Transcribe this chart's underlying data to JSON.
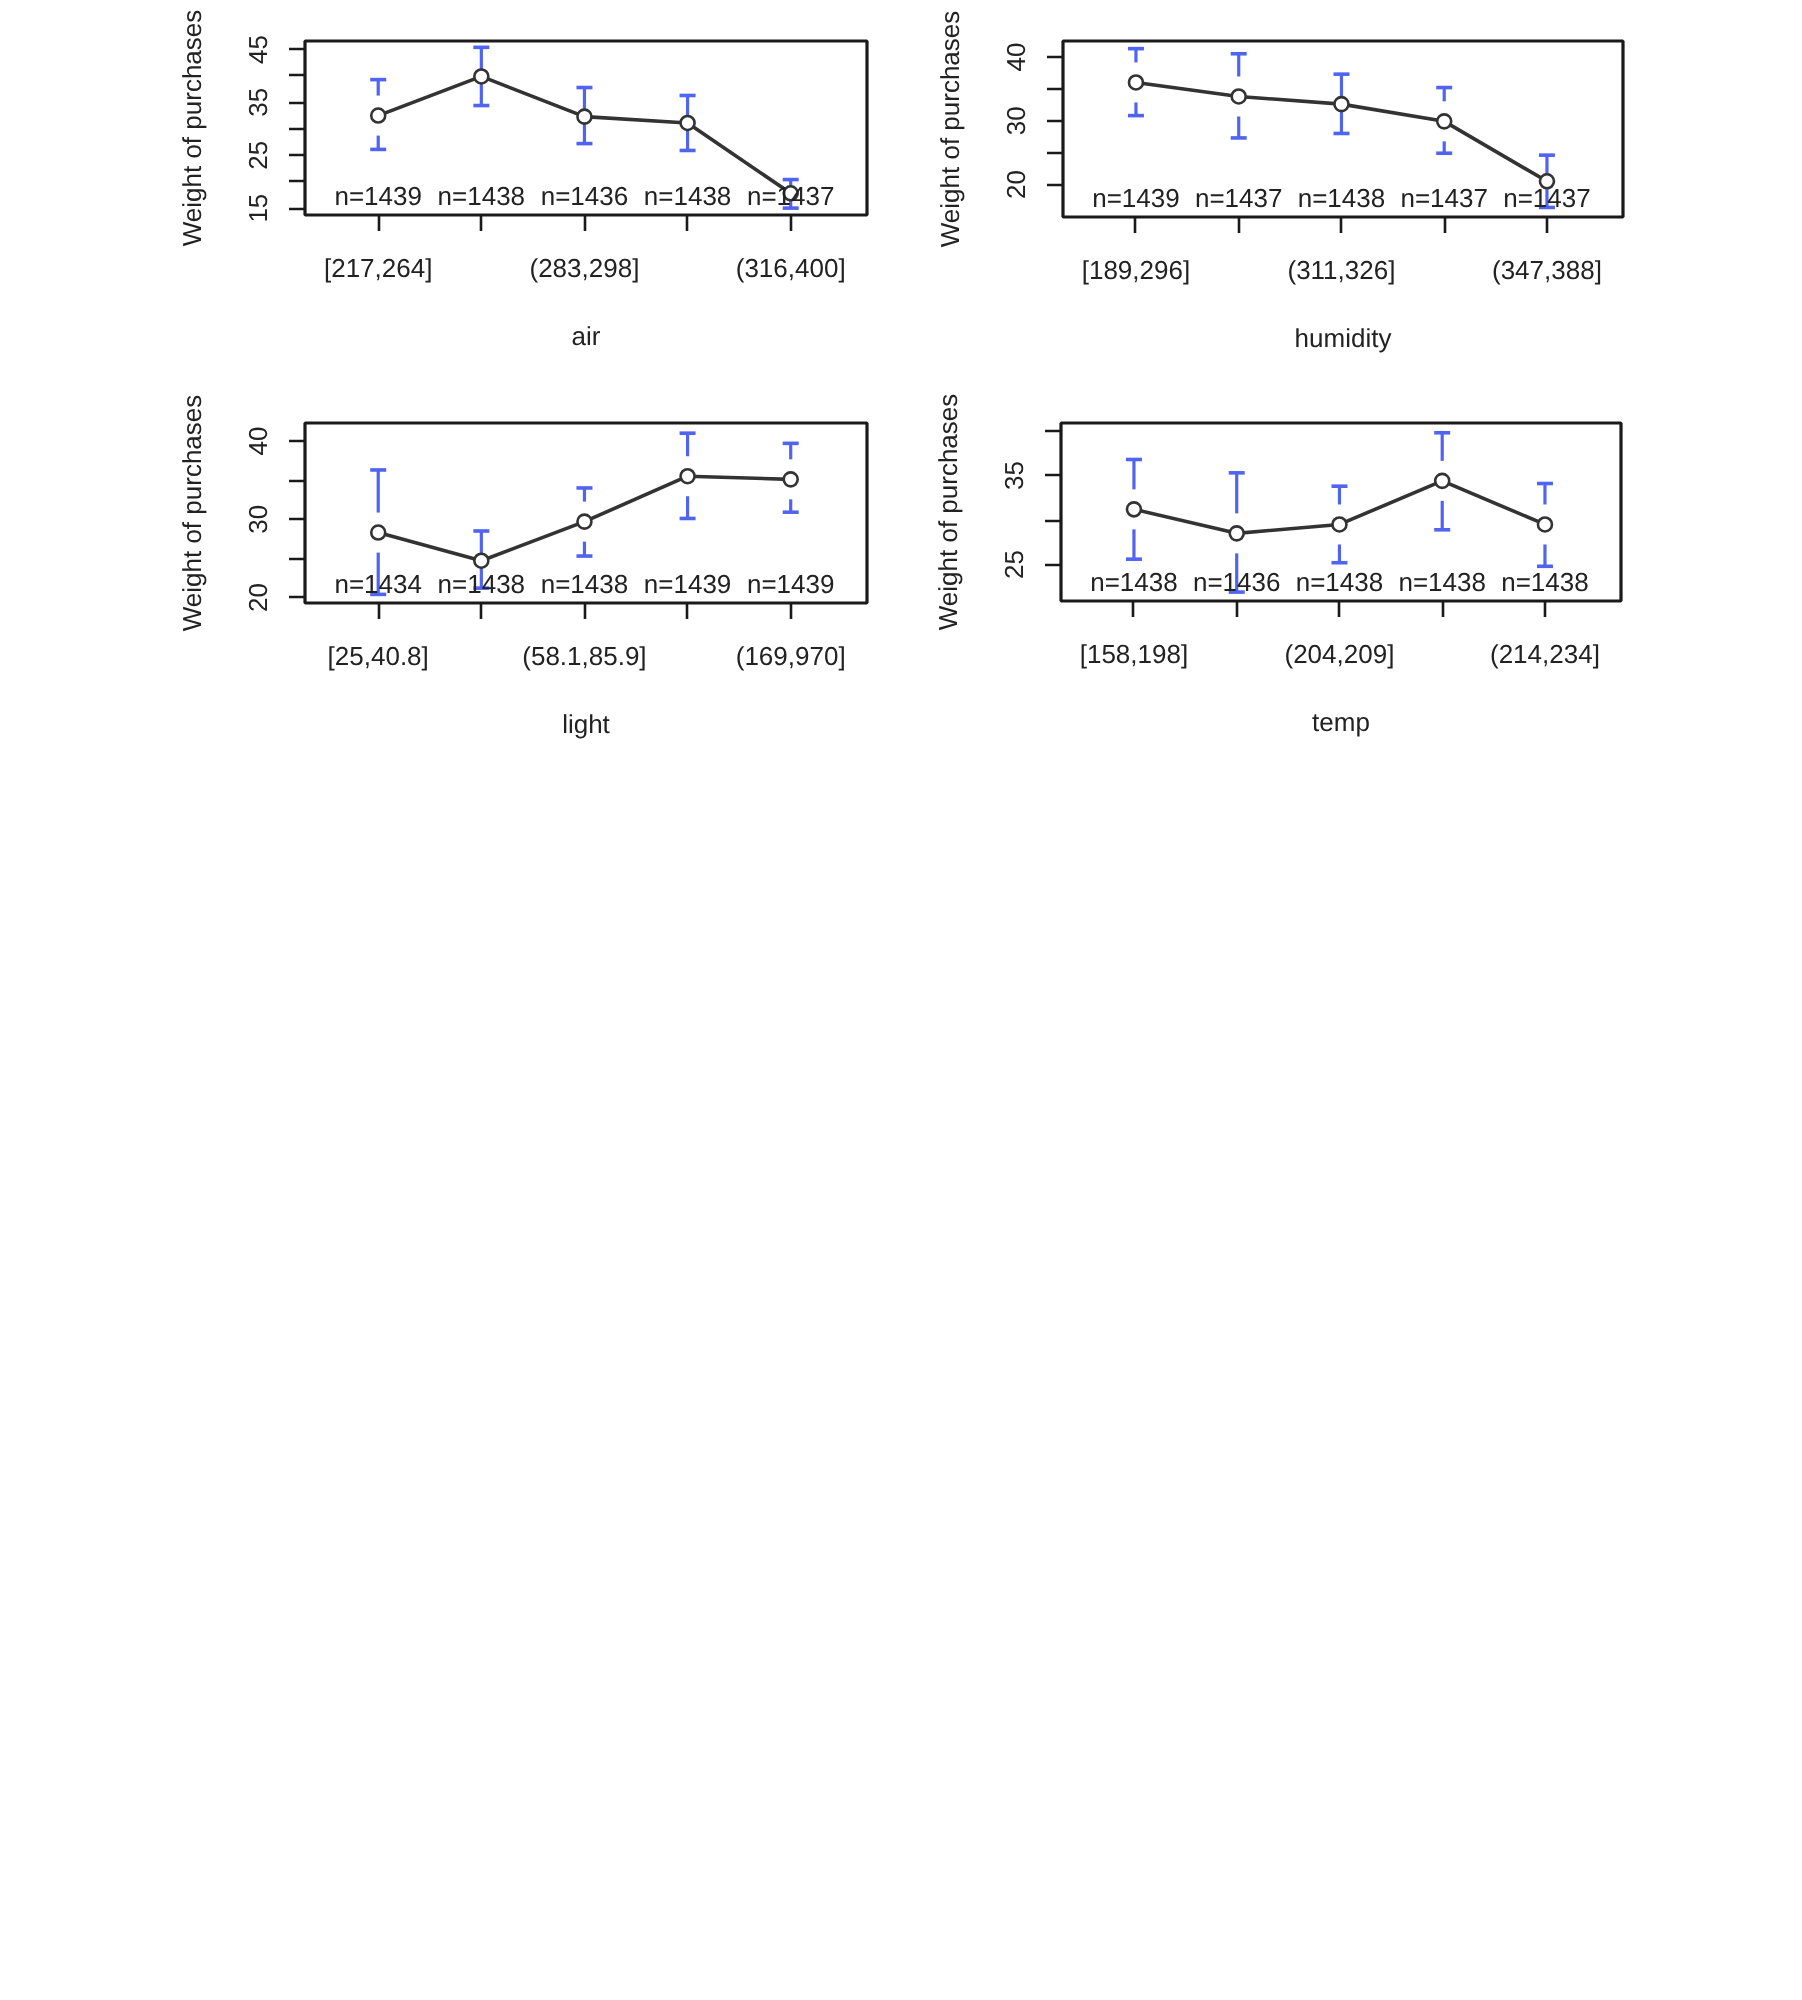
{
  "chart_data": [
    {
      "type": "line",
      "xlabel": "air",
      "ylabel": "Weight of purchases",
      "categories": [
        "[217,264]",
        null,
        "(283,298]",
        null,
        "(316,400]"
      ],
      "series": [
        {
          "color": "#333333",
          "values": [
            32.5,
            39.9,
            32.3,
            31.1,
            17.8
          ],
          "errors": [
            [
              26.1,
              39.3
            ],
            [
              34.4,
              45.4
            ],
            [
              27.2,
              37.8
            ],
            [
              25.9,
              36.3
            ],
            [
              15.0,
              20.4
            ]
          ]
        }
      ],
      "ylim": [
        13.7,
        46.6
      ],
      "yticks": [
        15,
        {
          "value": 20,
          "label": null
        },
        25,
        {
          "value": 30,
          "label": null
        },
        35,
        {
          "value": 40,
          "label": null
        },
        45
      ],
      "marker": "circle",
      "line_style": "solid",
      "annotations": [
        "n=1439",
        "n=1438",
        "n=1436",
        "n=1438",
        "n=1437"
      ]
    },
    {
      "type": "line",
      "xlabel": "humidity",
      "ylabel": "Weight of purchases",
      "categories": [
        "[189,296]",
        null,
        "(311,326]",
        null,
        "(347,388]"
      ],
      "series": [
        {
          "color": "#333333",
          "values": [
            36.0,
            33.8,
            32.6,
            29.9,
            20.5
          ],
          "errors": [
            [
              30.8,
              41.3
            ],
            [
              27.3,
              40.5
            ],
            [
              28.0,
              37.3
            ],
            [
              24.9,
              35.2
            ],
            [
              16.4,
              24.6
            ]
          ]
        }
      ],
      "ylim": [
        14.9,
        42.5
      ],
      "yticks": [
        20,
        {
          "value": 25,
          "label": null
        },
        30,
        {
          "value": 35,
          "label": null
        },
        40
      ],
      "marker": "circle",
      "line_style": "solid",
      "annotations": [
        "n=1439",
        "n=1437",
        "n=1438",
        "n=1437",
        "n=1437"
      ]
    },
    {
      "type": "line",
      "xlabel": "light",
      "ylabel": "Weight of purchases",
      "categories": [
        "[25,40.8]",
        null,
        "(58.1,85.9]",
        null,
        "(169,970]"
      ],
      "series": [
        {
          "color": "#333333",
          "values": [
            28.3,
            24.7,
            29.7,
            35.5,
            35.1
          ],
          "errors": [
            [
              20.4,
              36.3
            ],
            [
              21.2,
              28.5
            ],
            [
              25.3,
              34.0
            ],
            [
              30.1,
              41.0
            ],
            [
              30.9,
              39.7
            ]
          ]
        }
      ],
      "ylim": [
        19.3,
        42.3
      ],
      "yticks": [
        20,
        {
          "value": 25,
          "label": null
        },
        30,
        {
          "value": 35,
          "label": null
        },
        40
      ],
      "marker": "circle",
      "line_style": "solid",
      "annotations": [
        "n=1434",
        "n=1438",
        "n=1438",
        "n=1439",
        "n=1439"
      ]
    },
    {
      "type": "line",
      "xlabel": "temp",
      "ylabel": "Weight of purchases",
      "categories": [
        "[158,198]",
        null,
        "(204,209]",
        null,
        "(214,234]"
      ],
      "series": [
        {
          "color": "#333333",
          "values": [
            31.2,
            28.5,
            29.5,
            34.4,
            29.5
          ],
          "errors": [
            [
              25.6,
              36.8
            ],
            [
              21.9,
              35.3
            ],
            [
              25.2,
              33.8
            ],
            [
              28.9,
              39.8
            ],
            [
              24.8,
              34.1
            ]
          ]
        }
      ],
      "ylim": [
        20.9,
        40.9
      ],
      "yticks": [
        25,
        {
          "value": 30,
          "label": null
        },
        35,
        {
          "value": 40,
          "label": null
        }
      ],
      "marker": "circle",
      "line_style": "solid",
      "annotations": [
        "n=1438",
        "n=1436",
        "n=1438",
        "n=1438",
        "n=1438"
      ]
    }
  ]
}
